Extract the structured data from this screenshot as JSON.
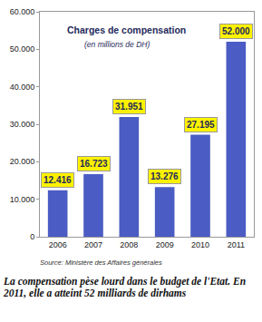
{
  "chart_data": {
    "type": "bar",
    "title": "Charges de compensation",
    "subtitle": "(en millions de DH)",
    "categories": [
      "2006",
      "2007",
      "2008",
      "2009",
      "2010",
      "2011"
    ],
    "values": [
      12416,
      16723,
      31951,
      13276,
      27195,
      52000
    ],
    "value_labels": [
      "12.416",
      "16.723",
      "31.951",
      "13.276",
      "27.195",
      "52.000"
    ],
    "data_labels": true,
    "color": "#4b5cc4",
    "ylim": [
      0,
      60000
    ],
    "yticks": [
      0,
      {
        "value": 10000,
        "label": "10.000"
      },
      {
        "value": 20000,
        "label": "20.000"
      },
      {
        "value": 30000,
        "label": "30.000"
      },
      {
        "value": 40000,
        "label": "40.000"
      },
      {
        "value": 50000,
        "label": "50.000"
      },
      {
        "value": 60000,
        "label": "60.000"
      }
    ],
    "grid": false,
    "source": "Source: Ministère des Affaires générales",
    "caption": "La compensation pèse lourd dans le budget de l'Etat. En 2011, elle a atteint 52 milliards de dirhams"
  }
}
